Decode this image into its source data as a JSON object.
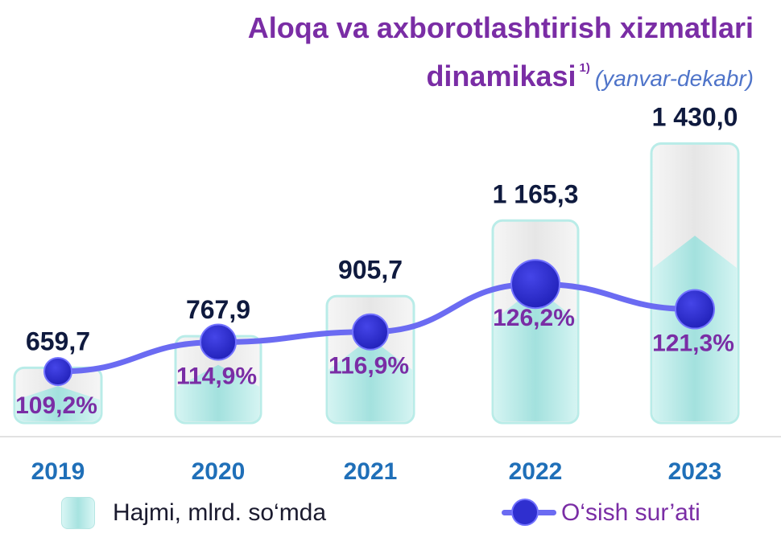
{
  "title": {
    "line1": "Aloqa va axborotlashtirish xizmatlari",
    "line2": "dinamikasi",
    "footnote": "1)",
    "period": "(yanvar-dekabr)"
  },
  "chart_data": {
    "type": "bar",
    "categories": [
      "2019",
      "2020",
      "2021",
      "2022",
      "2023"
    ],
    "series": [
      {
        "name": "Hajmi, mlrd. so‘mda",
        "type": "bar",
        "values": [
          659.7,
          767.9,
          905.7,
          1165.3,
          1430.0
        ],
        "labels": [
          "659,7",
          "767,9",
          "905,7",
          "1 165,3",
          "1 430,0"
        ]
      },
      {
        "name": "O‘sish sur’ati",
        "type": "line",
        "values": [
          109.2,
          114.9,
          116.9,
          126.2,
          121.3
        ],
        "labels": [
          "109,2%",
          "114,9%",
          "116,9%",
          "126,2%",
          "121,3%"
        ]
      }
    ],
    "legend_position": "bottom",
    "grid": false,
    "colors": {
      "bar_fill": "#a7e3e0",
      "bar_top": "#ececec",
      "line": "#6b6bf2",
      "marker": "#2f2fcf",
      "value_label": "#0f1a3e",
      "percent_label": "#7a2da5",
      "year_label": "#1f6fb8"
    }
  },
  "legend": {
    "bar_label": "Hajmi, mlrd. so‘mda",
    "line_label": "O‘sish sur’ati"
  }
}
